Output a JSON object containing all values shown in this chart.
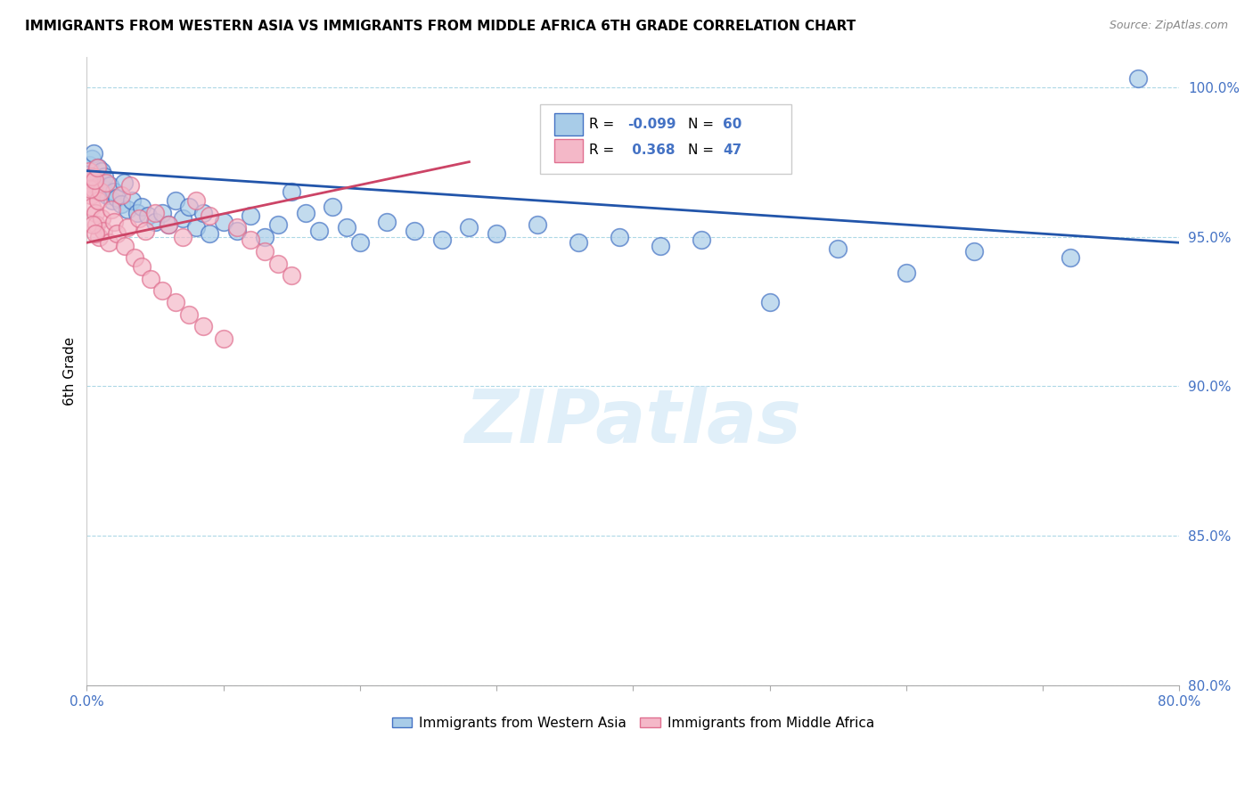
{
  "title": "IMMIGRANTS FROM WESTERN ASIA VS IMMIGRANTS FROM MIDDLE AFRICA 6TH GRADE CORRELATION CHART",
  "source": "Source: ZipAtlas.com",
  "ylabel": "6th Grade",
  "xlim": [
    0.0,
    80.0
  ],
  "ylim": [
    80.0,
    101.0
  ],
  "ytick_values": [
    80.0,
    85.0,
    90.0,
    95.0,
    100.0
  ],
  "legend_blue_label": "Immigrants from Western Asia",
  "legend_pink_label": "Immigrants from Middle Africa",
  "R_blue": -0.099,
  "N_blue": 60,
  "R_pink": 0.368,
  "N_pink": 47,
  "blue_color": "#a8cce8",
  "pink_color": "#f4b8c8",
  "blue_edge_color": "#4472c4",
  "pink_edge_color": "#e07090",
  "blue_line_color": "#2255aa",
  "pink_line_color": "#cc4466",
  "scatter_blue": [
    [
      0.2,
      97.4
    ],
    [
      0.3,
      97.1
    ],
    [
      0.4,
      97.6
    ],
    [
      0.5,
      97.8
    ],
    [
      0.6,
      97.0
    ],
    [
      0.7,
      96.8
    ],
    [
      0.8,
      97.3
    ],
    [
      0.9,
      96.5
    ],
    [
      1.0,
      96.9
    ],
    [
      1.1,
      97.2
    ],
    [
      1.2,
      96.6
    ],
    [
      1.3,
      97.0
    ],
    [
      1.5,
      96.4
    ],
    [
      1.7,
      96.7
    ],
    [
      1.9,
      96.2
    ],
    [
      2.0,
      96.5
    ],
    [
      2.2,
      96.3
    ],
    [
      2.5,
      96.1
    ],
    [
      2.7,
      96.8
    ],
    [
      3.0,
      95.9
    ],
    [
      3.3,
      96.2
    ],
    [
      3.7,
      95.8
    ],
    [
      4.0,
      96.0
    ],
    [
      4.5,
      95.7
    ],
    [
      5.0,
      95.5
    ],
    [
      5.5,
      95.8
    ],
    [
      6.0,
      95.4
    ],
    [
      6.5,
      96.2
    ],
    [
      7.0,
      95.6
    ],
    [
      7.5,
      96.0
    ],
    [
      8.0,
      95.3
    ],
    [
      8.5,
      95.8
    ],
    [
      9.0,
      95.1
    ],
    [
      10.0,
      95.5
    ],
    [
      11.0,
      95.2
    ],
    [
      12.0,
      95.7
    ],
    [
      13.0,
      95.0
    ],
    [
      14.0,
      95.4
    ],
    [
      15.0,
      96.5
    ],
    [
      16.0,
      95.8
    ],
    [
      17.0,
      95.2
    ],
    [
      18.0,
      96.0
    ],
    [
      19.0,
      95.3
    ],
    [
      20.0,
      94.8
    ],
    [
      22.0,
      95.5
    ],
    [
      24.0,
      95.2
    ],
    [
      26.0,
      94.9
    ],
    [
      28.0,
      95.3
    ],
    [
      30.0,
      95.1
    ],
    [
      33.0,
      95.4
    ],
    [
      36.0,
      94.8
    ],
    [
      39.0,
      95.0
    ],
    [
      42.0,
      94.7
    ],
    [
      45.0,
      94.9
    ],
    [
      50.0,
      92.8
    ],
    [
      55.0,
      94.6
    ],
    [
      60.0,
      93.8
    ],
    [
      65.0,
      94.5
    ],
    [
      72.0,
      94.3
    ],
    [
      77.0,
      100.3
    ]
  ],
  "scatter_pink": [
    [
      0.2,
      96.8
    ],
    [
      0.3,
      96.4
    ],
    [
      0.4,
      96.0
    ],
    [
      0.5,
      96.6
    ],
    [
      0.6,
      95.8
    ],
    [
      0.7,
      95.4
    ],
    [
      0.8,
      96.2
    ],
    [
      0.9,
      95.0
    ],
    [
      1.0,
      96.5
    ],
    [
      1.1,
      95.6
    ],
    [
      1.2,
      95.2
    ],
    [
      1.4,
      96.8
    ],
    [
      1.6,
      94.8
    ],
    [
      1.8,
      95.9
    ],
    [
      2.0,
      95.5
    ],
    [
      2.2,
      95.1
    ],
    [
      2.5,
      96.4
    ],
    [
      2.8,
      94.7
    ],
    [
      3.0,
      95.3
    ],
    [
      3.2,
      96.7
    ],
    [
      3.5,
      94.3
    ],
    [
      3.8,
      95.6
    ],
    [
      4.0,
      94.0
    ],
    [
      4.3,
      95.2
    ],
    [
      4.7,
      93.6
    ],
    [
      5.0,
      95.8
    ],
    [
      5.5,
      93.2
    ],
    [
      6.0,
      95.4
    ],
    [
      6.5,
      92.8
    ],
    [
      7.0,
      95.0
    ],
    [
      7.5,
      92.4
    ],
    [
      8.0,
      96.2
    ],
    [
      8.5,
      92.0
    ],
    [
      9.0,
      95.7
    ],
    [
      10.0,
      91.6
    ],
    [
      11.0,
      95.3
    ],
    [
      12.0,
      94.9
    ],
    [
      13.0,
      94.5
    ],
    [
      14.0,
      94.1
    ],
    [
      15.0,
      93.7
    ],
    [
      0.15,
      97.2
    ],
    [
      0.25,
      96.6
    ],
    [
      0.35,
      97.0
    ],
    [
      0.45,
      95.4
    ],
    [
      0.55,
      96.9
    ],
    [
      0.65,
      95.1
    ],
    [
      0.75,
      97.3
    ]
  ],
  "blue_trend_x": [
    0.0,
    80.0
  ],
  "blue_trend_y": [
    97.2,
    94.8
  ],
  "pink_trend_x": [
    0.0,
    28.0
  ],
  "pink_trend_y": [
    94.8,
    97.5
  ],
  "watermark_text": "ZIPatlas",
  "grid_color": "#add8e6",
  "title_fontsize": 11,
  "tick_fontsize": 11,
  "ylabel_fontsize": 11
}
